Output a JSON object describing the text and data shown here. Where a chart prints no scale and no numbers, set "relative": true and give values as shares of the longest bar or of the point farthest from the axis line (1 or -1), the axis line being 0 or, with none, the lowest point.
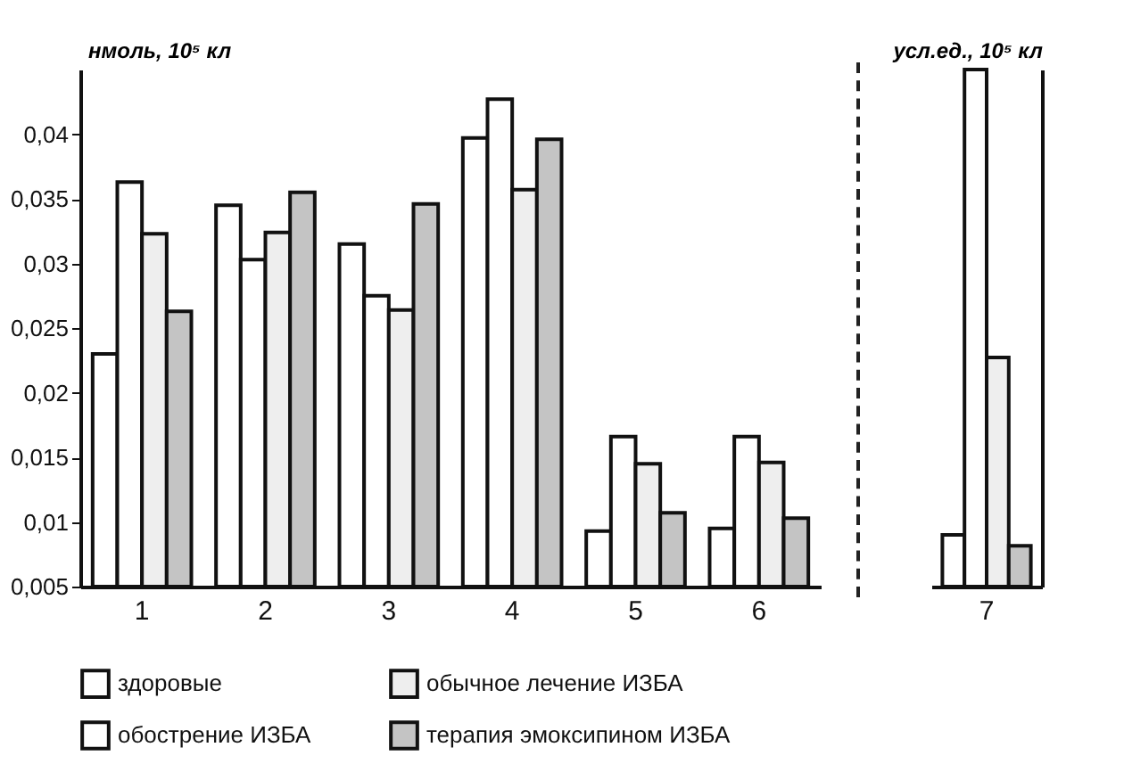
{
  "chart_data": [
    {
      "type": "bar",
      "ylabel": "нмоль, 10⁵ кл",
      "categories": [
        "1",
        "2",
        "3",
        "4",
        "5",
        "6"
      ],
      "series": [
        {
          "name": "здоровые",
          "color": "#ffffff",
          "values": [
            0.023,
            0.0345,
            0.0315,
            0.0397,
            0.0093,
            0.0095
          ]
        },
        {
          "name": "обострение ИЗБА",
          "color": "#ffffff",
          "values": [
            0.0363,
            0.0303,
            0.0275,
            0.0427,
            0.0166,
            0.0166
          ]
        },
        {
          "name": "обычное лечение ИЗБА",
          "color": "#eeeeee",
          "values": [
            0.0323,
            0.0324,
            0.0264,
            0.0357,
            0.0145,
            0.0146
          ]
        },
        {
          "name": "терапия эмоксипином ИЗБА",
          "color": "#c4c4c4",
          "values": [
            0.0263,
            0.0355,
            0.0346,
            0.0396,
            0.0107,
            0.0103
          ]
        }
      ],
      "ylim": [
        0.005,
        0.045
      ],
      "yticks": [
        {
          "value": 0.005,
          "label": "0,005"
        },
        {
          "value": 0.01,
          "label": "0,01"
        },
        {
          "value": 0.015,
          "label": "0,015"
        },
        {
          "value": 0.02,
          "label": "0,02"
        },
        {
          "value": 0.025,
          "label": "0,025"
        },
        {
          "value": 0.03,
          "label": "0,03"
        },
        {
          "value": 0.035,
          "label": "0,035"
        },
        {
          "value": 0.04,
          "label": "0,04"
        }
      ],
      "legend": "bottom"
    },
    {
      "type": "bar",
      "ylabel": "усл.ед., 10⁵ кл",
      "categories": [
        "7"
      ],
      "relative": true,
      "series": [
        {
          "color": "#ffffff",
          "values": [
            0.1
          ]
        },
        {
          "color": "#ffffff",
          "values": [
            1
          ]
        },
        {
          "color": "#eeeeee",
          "values": [
            0.443
          ]
        },
        {
          "color": "#c4c4c4",
          "values": [
            0.079
          ]
        }
      ]
    }
  ]
}
